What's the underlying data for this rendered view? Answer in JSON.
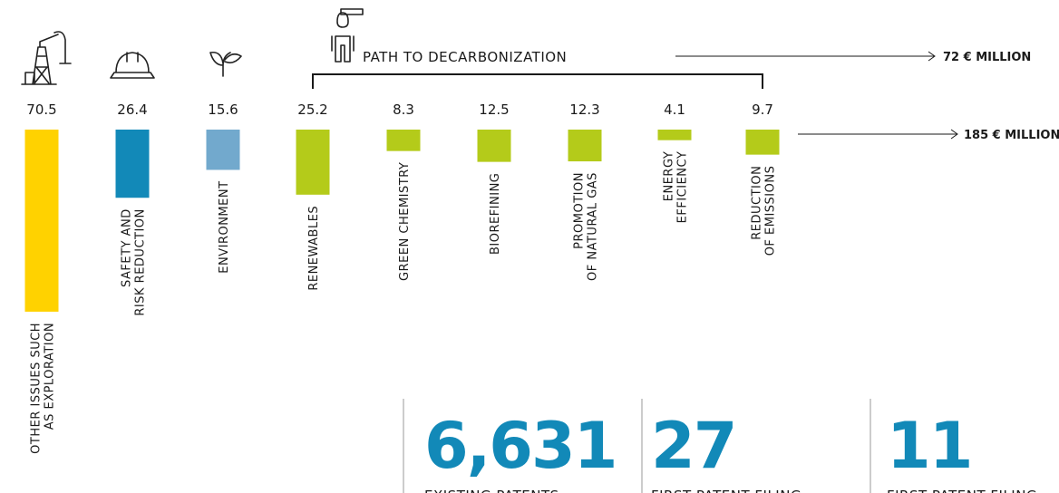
{
  "chart_data": {
    "type": "bar",
    "categories": [
      [
        "OTHER ISSUES SUCH",
        "AS EXPLORATION"
      ],
      [
        "SAFETY AND",
        "RISK REDUCTION"
      ],
      [
        "ENVIRONMENT"
      ],
      [
        "RENEWABLES"
      ],
      [
        "GREEN CHEMISTRY"
      ],
      [
        "BIOREFINING"
      ],
      [
        "PROMOTION",
        "OF NATURAL GAS"
      ],
      [
        "ENERGY",
        "EFFICIENCY"
      ],
      [
        "REDUCTION",
        "OF EMISSIONS"
      ]
    ],
    "values": [
      70.5,
      26.4,
      15.6,
      25.2,
      8.3,
      12.5,
      12.3,
      4.1,
      9.7
    ],
    "colors": [
      "#ffd200",
      "#1289b8",
      "#72a9cd",
      "#b4cb1a",
      "#b4cb1a",
      "#b4cb1a",
      "#b4cb1a",
      "#b4cb1a",
      "#b4cb1a"
    ],
    "bracket_label": "PATH TO DECARBONIZATION",
    "bracket_total": "72 € MILLION",
    "total": "185 € MILLION",
    "stats": [
      {
        "value": "6,631",
        "label": "EXISTING PATENTS"
      },
      {
        "value": "27",
        "label": "FIRST PATENT FILING"
      },
      {
        "value": "11",
        "label": "FIRST PATENT FILING"
      }
    ]
  }
}
